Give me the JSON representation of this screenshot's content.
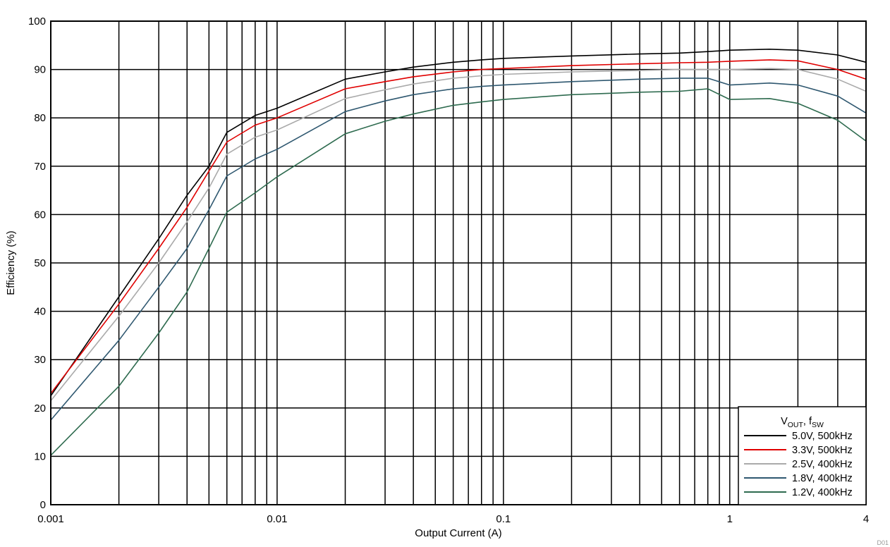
{
  "chart_data": {
    "type": "line",
    "xlabel": "Output Current (A)",
    "ylabel": "Efficiency (%)",
    "xscale": "log",
    "xlim": [
      0.001,
      4
    ],
    "ylim": [
      0,
      100
    ],
    "x_ticks": [
      0.001,
      0.01,
      0.1,
      1,
      4
    ],
    "x_tick_labels": [
      "0.001",
      "0.01",
      "0.1",
      "1",
      "4"
    ],
    "y_ticks": [
      0,
      10,
      20,
      30,
      40,
      50,
      60,
      70,
      80,
      90,
      100
    ],
    "y_tick_labels": [
      "0",
      "10",
      "20",
      "30",
      "40",
      "50",
      "60",
      "70",
      "80",
      "90",
      "100"
    ],
    "grid": true,
    "legend_position": "bottom-right",
    "legend_title": {
      "main": "V",
      "sub1": "OUT",
      "mid": ", f",
      "sub2": "SW"
    },
    "figure_id": "D01",
    "series": [
      {
        "name": "5.0V, 500kHz",
        "color": "#000000",
        "x": [
          0.001,
          0.002,
          0.003,
          0.004,
          0.005,
          0.006,
          0.008,
          0.01,
          0.02,
          0.03,
          0.04,
          0.06,
          0.08,
          0.1,
          0.2,
          0.4,
          0.6,
          0.8,
          1,
          1.5,
          2,
          3,
          4
        ],
        "y": [
          22.5,
          43,
          55,
          64,
          70,
          77,
          80.5,
          82,
          88,
          89.5,
          90.5,
          91.5,
          92,
          92.3,
          92.8,
          93.2,
          93.4,
          93.7,
          94,
          94.2,
          94,
          93,
          91.5
        ]
      },
      {
        "name": "3.3V, 500kHz",
        "color": "#e00000",
        "x": [
          0.001,
          0.002,
          0.003,
          0.004,
          0.005,
          0.006,
          0.008,
          0.01,
          0.02,
          0.03,
          0.04,
          0.06,
          0.08,
          0.1,
          0.2,
          0.4,
          0.6,
          0.8,
          1,
          1.5,
          2,
          3,
          4
        ],
        "y": [
          23,
          41.5,
          53,
          61.5,
          69,
          75,
          78.5,
          80,
          86,
          87.5,
          88.5,
          89.5,
          90,
          90.2,
          90.8,
          91.2,
          91.4,
          91.5,
          91.7,
          92,
          91.8,
          90,
          88
        ]
      },
      {
        "name": "2.5V, 400kHz",
        "color": "#aaaaaa",
        "x": [
          0.001,
          0.002,
          0.003,
          0.004,
          0.005,
          0.006,
          0.008,
          0.01,
          0.02,
          0.03,
          0.04,
          0.06,
          0.08,
          0.1,
          0.2,
          0.4,
          0.6,
          0.8,
          1,
          1.5,
          2,
          3,
          4
        ],
        "y": [
          21.5,
          39,
          50,
          58.5,
          65.5,
          72.5,
          76,
          77.5,
          84,
          85.8,
          87,
          88.2,
          88.7,
          89,
          89.5,
          89.8,
          90,
          90,
          90,
          90.2,
          90,
          88,
          85.5
        ]
      },
      {
        "name": "1.8V, 400kHz",
        "color": "#2f5870",
        "x": [
          0.001,
          0.002,
          0.003,
          0.004,
          0.005,
          0.006,
          0.008,
          0.01,
          0.02,
          0.03,
          0.04,
          0.06,
          0.08,
          0.1,
          0.2,
          0.4,
          0.6,
          0.8,
          1,
          1.5,
          2,
          3,
          4
        ],
        "y": [
          17.5,
          34,
          45,
          53,
          61,
          68,
          71.5,
          73.5,
          81.3,
          83.5,
          84.8,
          86,
          86.5,
          86.8,
          87.5,
          88,
          88.2,
          88.2,
          86.8,
          87.2,
          86.8,
          84.5,
          81
        ]
      },
      {
        "name": "1.2V, 400kHz",
        "color": "#2e6b4f",
        "x": [
          0.001,
          0.002,
          0.003,
          0.004,
          0.005,
          0.006,
          0.008,
          0.01,
          0.02,
          0.03,
          0.04,
          0.06,
          0.08,
          0.1,
          0.2,
          0.4,
          0.6,
          0.8,
          1,
          1.5,
          2,
          3,
          4
        ],
        "y": [
          10.2,
          24.5,
          35.5,
          44,
          53,
          60.5,
          64.5,
          67.8,
          76.7,
          79.3,
          80.8,
          82.6,
          83.3,
          83.8,
          84.8,
          85.3,
          85.5,
          86,
          83.8,
          84,
          83,
          79.5,
          75.2
        ]
      }
    ]
  }
}
